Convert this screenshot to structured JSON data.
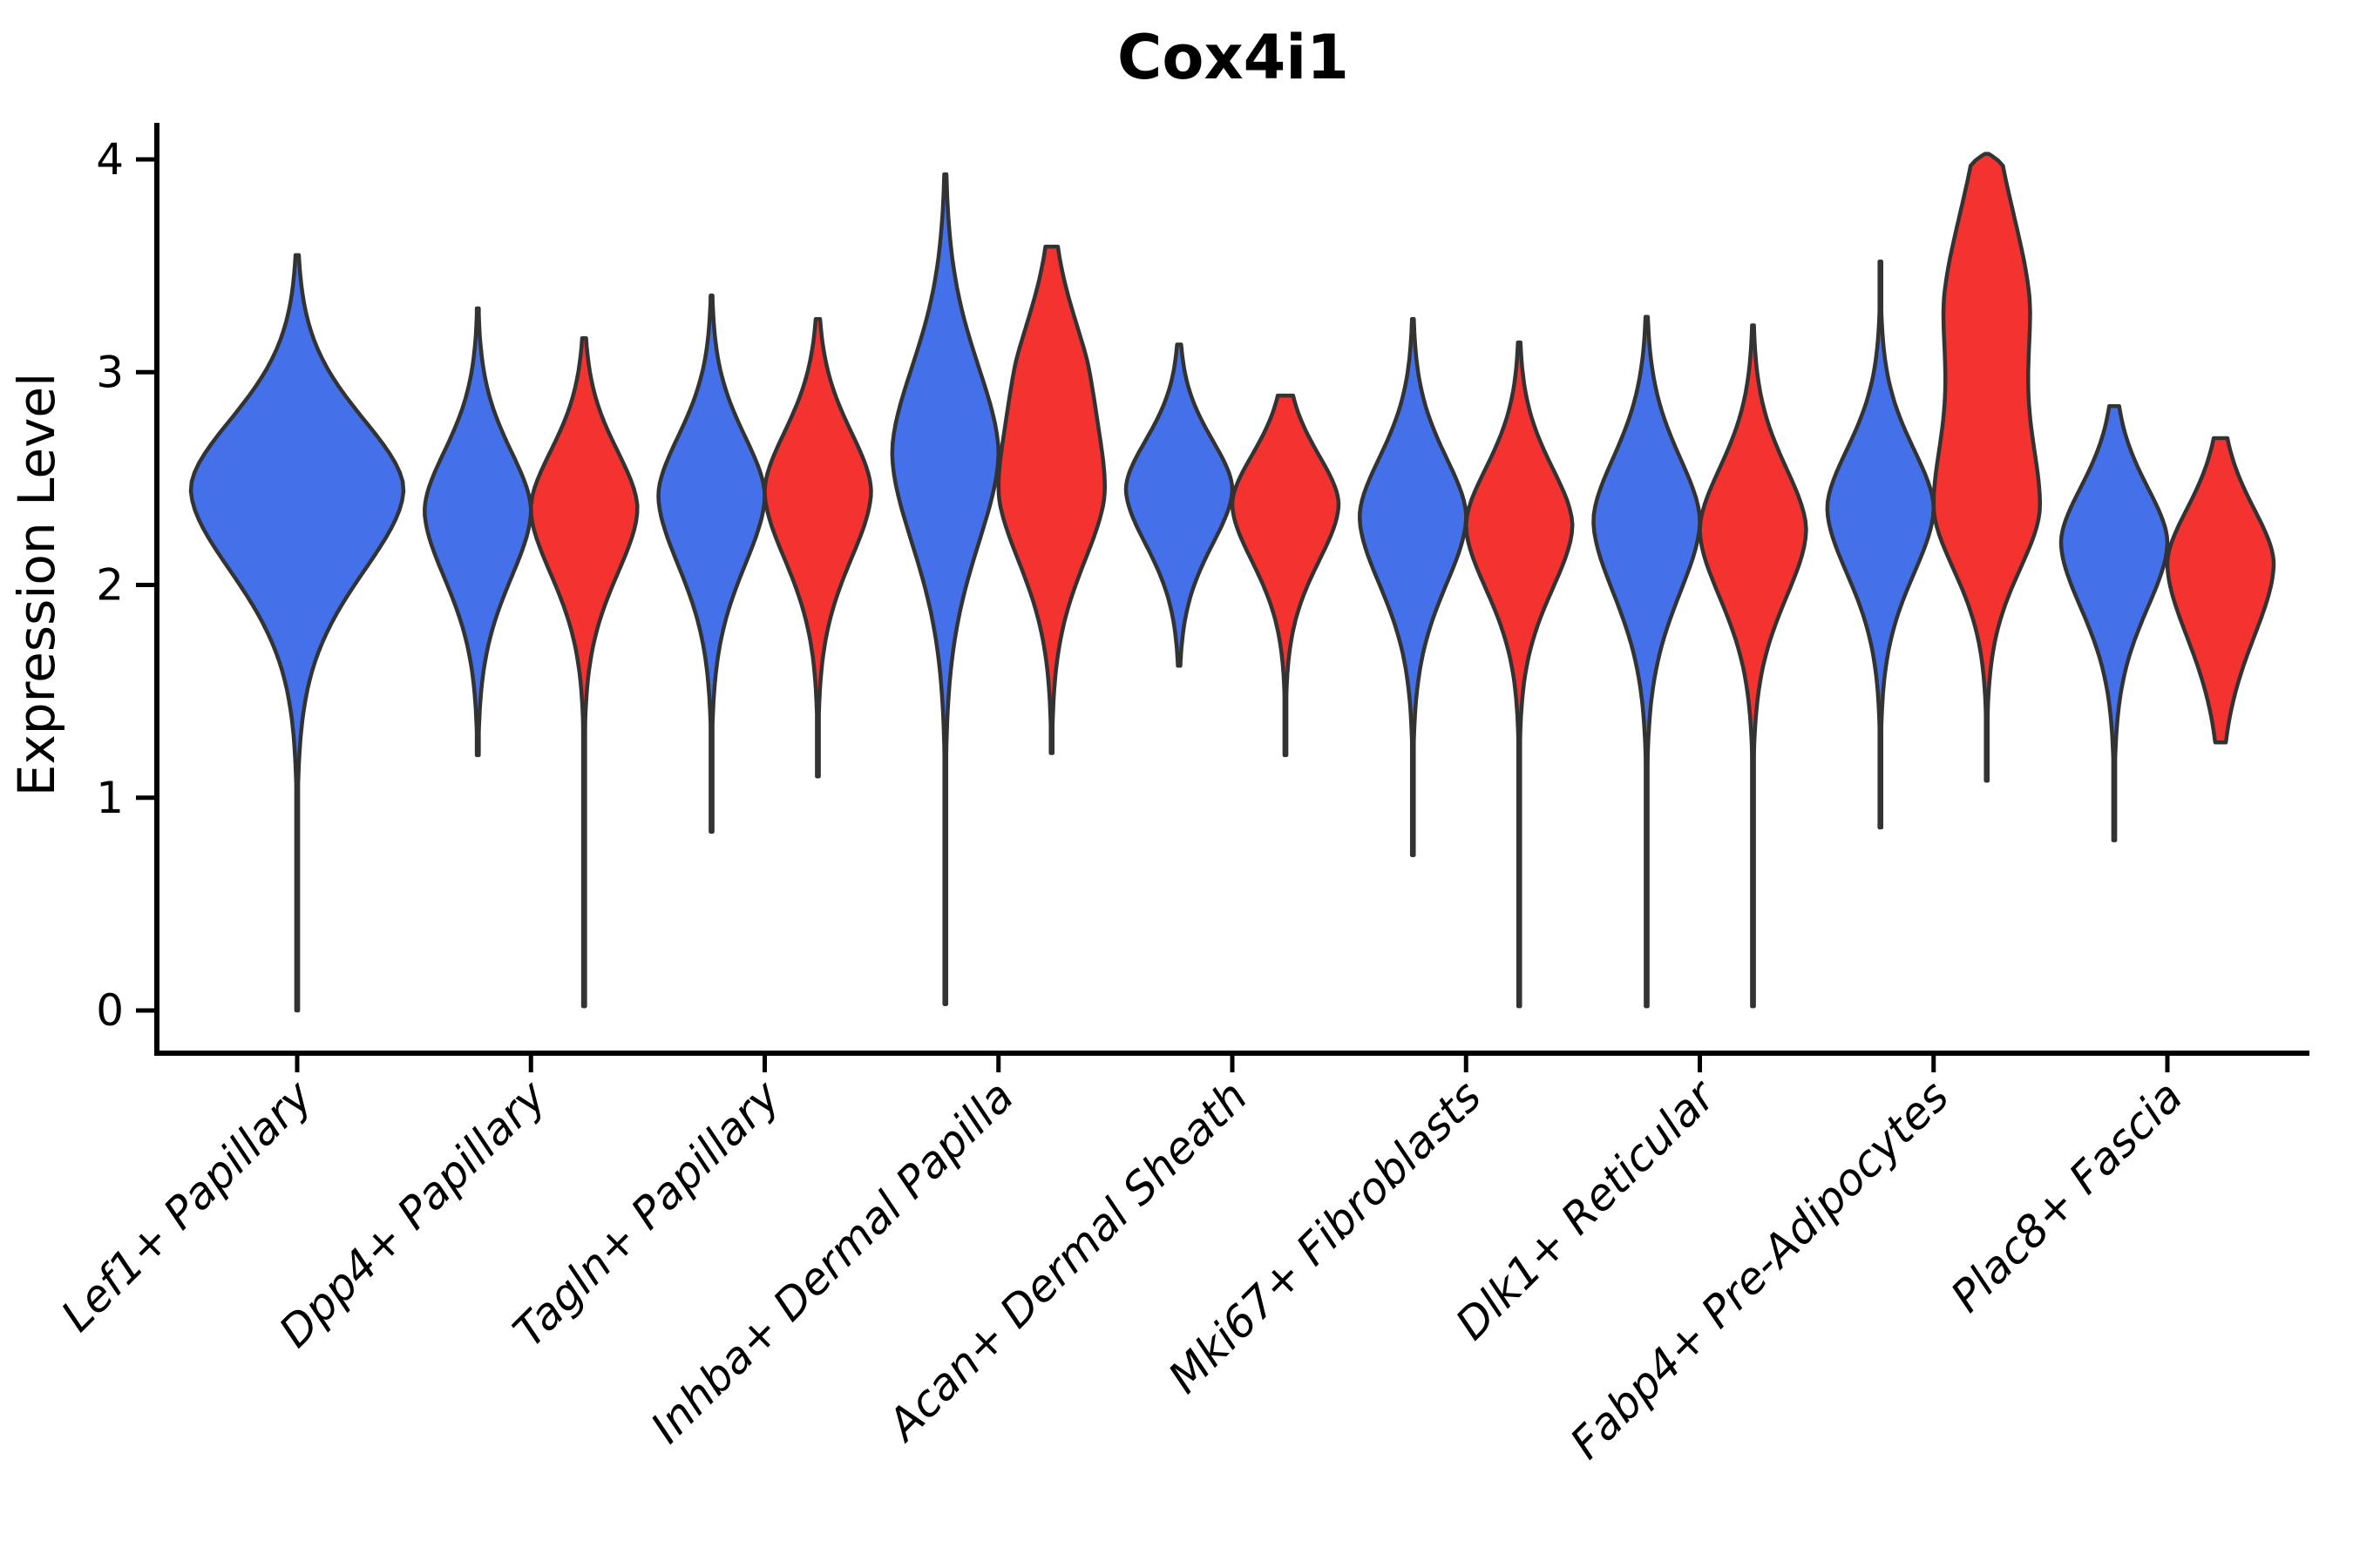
{
  "chart_data": {
    "type": "violin",
    "title": "Cox4i1",
    "ylabel": "Expression Level",
    "yticks": [
      0,
      1,
      2,
      3,
      4
    ],
    "ylim": [
      -0.2,
      4.2
    ],
    "grid": false,
    "legend": "none",
    "categories": [
      "Lef1+ Papillary",
      "Dpp4+ Papillary",
      "Tagln+ Papillary",
      "Inhba+ Dermal Papilla",
      "Acan+ Dermal Sheath",
      "Mki67+ Fibroblasts",
      "Dlk1+ Reticular",
      "Fabp4+ Pre-Adipocytes",
      "Plac8+ Fascia"
    ],
    "colors": {
      "blue_fill": "#4470EA",
      "red_fill": "#F43331",
      "outline": "#333333",
      "axis": "#000000",
      "background": "#ffffff"
    },
    "series": [
      {
        "side": "left",
        "color": "#4470EA",
        "violins": [
          {
            "cat": 0,
            "x": 0,
            "w": 2,
            "min": 0.0,
            "max": 3.55,
            "peaks": [
              [
                2.45,
                0.34,
                0.4,
                1
              ]
            ]
          },
          {
            "cat": 1,
            "x": -1,
            "w": 1,
            "min": 1.2,
            "max": 3.3,
            "peaks": [
              [
                2.35,
                0.29,
                0.33,
                1
              ]
            ]
          },
          {
            "cat": 2,
            "x": -1,
            "w": 1,
            "min": 0.84,
            "max": 3.36,
            "peaks": [
              [
                2.42,
                0.29,
                0.34,
                1
              ]
            ]
          },
          {
            "cat": 3,
            "x": -1,
            "w": 1,
            "min": 0.03,
            "max": 3.93,
            "peaks": [
              [
                2.62,
                0.42,
                0.44,
                1
              ]
            ]
          },
          {
            "cat": 4,
            "x": -1,
            "w": 1,
            "min": 1.62,
            "max": 3.13,
            "peaks": [
              [
                2.45,
                0.24,
                0.27,
                1
              ]
            ]
          },
          {
            "cat": 5,
            "x": -1,
            "w": 1,
            "min": 0.73,
            "max": 3.25,
            "peaks": [
              [
                2.32,
                0.29,
                0.33,
                1
              ]
            ]
          },
          {
            "cat": 6,
            "x": -1,
            "w": 1,
            "min": 0.02,
            "max": 3.26,
            "peaks": [
              [
                2.3,
                0.31,
                0.35,
                1
              ]
            ]
          },
          {
            "cat": 7,
            "x": -1,
            "w": 1,
            "min": 0.86,
            "max": 3.52,
            "peaks": [
              [
                2.36,
                0.29,
                0.32,
                1
              ]
            ]
          },
          {
            "cat": 8,
            "x": -1,
            "w": 1,
            "min": 0.8,
            "max": 2.84,
            "peaks": [
              [
                2.2,
                0.27,
                0.32,
                1
              ]
            ]
          }
        ]
      },
      {
        "side": "right",
        "color": "#F43331",
        "violins": [
          {
            "cat": 1,
            "x": 1,
            "w": 1,
            "min": 0.02,
            "max": 3.16,
            "peaks": [
              [
                2.36,
                0.28,
                0.32,
                1
              ]
            ]
          },
          {
            "cat": 2,
            "x": 1,
            "w": 1,
            "min": 1.1,
            "max": 3.25,
            "peaks": [
              [
                2.44,
                0.29,
                0.33,
                1
              ]
            ]
          },
          {
            "cat": 3,
            "x": 1,
            "w": 1,
            "min": 1.21,
            "max": 3.59,
            "peaks": [
              [
                2.42,
                0.37,
                0.34,
                1
              ],
              [
                3.05,
                0.3,
                0.3,
                0.45
              ]
            ]
          },
          {
            "cat": 4,
            "x": 1,
            "w": 1,
            "min": 1.2,
            "max": 2.89,
            "peaks": [
              [
                2.38,
                0.24,
                0.28,
                1
              ]
            ]
          },
          {
            "cat": 5,
            "x": 1,
            "w": 1,
            "min": 0.02,
            "max": 3.14,
            "peaks": [
              [
                2.28,
                0.28,
                0.31,
                1
              ]
            ]
          },
          {
            "cat": 6,
            "x": 1,
            "w": 1,
            "min": 0.02,
            "max": 3.22,
            "peaks": [
              [
                2.26,
                0.3,
                0.33,
                1
              ]
            ]
          },
          {
            "cat": 7,
            "x": 1,
            "w": 1,
            "min": 1.08,
            "max": 3.97,
            "peaks": [
              [
                2.35,
                0.4,
                0.3,
                1
              ],
              [
                3.35,
                0.45,
                0.4,
                0.78
              ]
            ]
          },
          {
            "cat": 8,
            "x": 1,
            "w": 1,
            "min": 1.26,
            "max": 2.69,
            "peaks": [
              [
                2.1,
                0.27,
                0.36,
                1
              ]
            ]
          }
        ]
      }
    ]
  }
}
